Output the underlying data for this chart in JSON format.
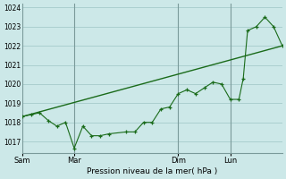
{
  "background_color": "#cce8e8",
  "grid_color": "#aacfcf",
  "line_color": "#1a6b1a",
  "title": "Pression niveau de la mer( hPa )",
  "ylim": [
    1016.4,
    1024.2
  ],
  "yticks": [
    1017,
    1018,
    1019,
    1020,
    1021,
    1022,
    1023,
    1024
  ],
  "xtick_labels": [
    "Sam",
    "Mar",
    "Dim",
    "Lun"
  ],
  "xtick_positions": [
    0,
    36,
    108,
    144
  ],
  "vline_positions": [
    0,
    36,
    108,
    144
  ],
  "total_hours": 180,
  "series_trend": {
    "x": [
      0,
      180
    ],
    "y": [
      1018.3,
      1022.0
    ]
  },
  "series_detail": {
    "x": [
      0,
      6,
      12,
      18,
      24,
      30,
      36,
      42,
      48,
      54,
      60,
      72,
      78,
      84,
      90,
      96,
      102,
      108,
      114,
      120,
      126,
      132,
      138,
      144,
      150,
      153,
      156,
      162,
      168,
      174,
      180
    ],
    "y": [
      1018.3,
      1018.4,
      1018.5,
      1018.1,
      1017.8,
      1018.0,
      1016.65,
      1017.8,
      1017.3,
      1017.3,
      1017.4,
      1017.5,
      1017.5,
      1018.0,
      1018.0,
      1018.7,
      1018.8,
      1019.5,
      1019.7,
      1019.5,
      1019.8,
      1020.1,
      1020.0,
      1019.2,
      1019.2,
      1020.3,
      1022.8,
      1023.0,
      1023.5,
      1023.0,
      1022.0
    ]
  }
}
